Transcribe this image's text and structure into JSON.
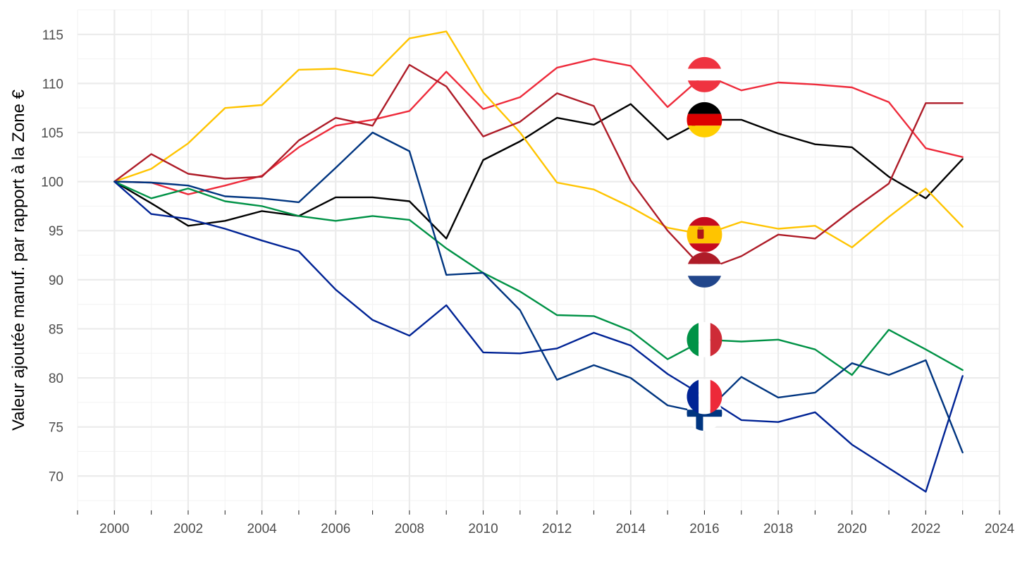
{
  "chart_data": {
    "type": "line",
    "title": "",
    "xlabel": "",
    "ylabel": "Valeur ajoutée manuf. par rapport à la Zone €",
    "xlim": [
      1999,
      2024
    ],
    "ylim": [
      66.5,
      117.5
    ],
    "x_ticks": [
      2000,
      2002,
      2004,
      2006,
      2008,
      2010,
      2012,
      2014,
      2016,
      2018,
      2020,
      2022,
      2024
    ],
    "y_ticks": [
      70,
      75,
      80,
      85,
      90,
      95,
      100,
      105,
      110,
      115
    ],
    "grid": true,
    "legend": "flags placed on the lines at 2016",
    "x": [
      2000,
      2001,
      2002,
      2003,
      2004,
      2005,
      2006,
      2007,
      2008,
      2009,
      2010,
      2011,
      2012,
      2013,
      2014,
      2015,
      2016,
      2017,
      2018,
      2019,
      2020,
      2021,
      2022,
      2023
    ],
    "series": [
      {
        "key": "AT",
        "color": "#EE2B3B",
        "flag": "austria-flag-icon",
        "values": [
          100,
          99.9,
          98.7,
          99.6,
          100.6,
          103.5,
          105.7,
          106.3,
          107.2,
          111.2,
          107.4,
          108.6,
          111.6,
          112.5,
          111.8,
          107.6,
          110.9,
          109.3,
          110.1,
          109.9,
          109.6,
          108.1,
          103.4,
          102.5
        ]
      },
      {
        "key": "DE",
        "color": "#000000",
        "flag": "germany-flag-icon",
        "values": [
          100,
          97.8,
          95.5,
          96.0,
          97.0,
          96.5,
          98.4,
          98.4,
          98.0,
          94.2,
          102.2,
          104.1,
          106.5,
          105.8,
          107.9,
          104.3,
          106.3,
          106.3,
          104.9,
          103.8,
          103.5,
          100.5,
          98.3,
          102.3
        ]
      },
      {
        "key": "ES",
        "color": "#FFC400",
        "flag": "spain-flag-icon",
        "values": [
          100,
          101.3,
          103.9,
          107.5,
          107.8,
          111.4,
          111.5,
          110.8,
          114.6,
          115.3,
          109.1,
          105.0,
          99.9,
          99.2,
          97.4,
          95.3,
          94.6,
          95.9,
          95.2,
          95.5,
          93.3,
          96.4,
          99.3,
          95.4
        ]
      },
      {
        "key": "NL",
        "color": "#AE1C28",
        "flag": "netherlands-flag-icon",
        "values": [
          100,
          102.8,
          100.8,
          100.3,
          100.5,
          104.2,
          106.5,
          105.7,
          111.9,
          109.7,
          104.6,
          106.1,
          109.0,
          107.7,
          100.1,
          95.0,
          91.0,
          92.4,
          94.6,
          94.2,
          97.1,
          99.8,
          108.0,
          108.0
        ]
      },
      {
        "key": "IT",
        "color": "#009246",
        "flag": "italy-flag-icon",
        "values": [
          100,
          98.3,
          99.3,
          98.0,
          97.5,
          96.5,
          96.0,
          96.5,
          96.1,
          93.2,
          90.7,
          88.8,
          86.4,
          86.3,
          84.8,
          81.9,
          83.9,
          83.7,
          83.9,
          82.9,
          80.3,
          84.9,
          82.9,
          80.8
        ]
      },
      {
        "key": "FR",
        "color": "#002395",
        "flag": "france-flag-icon",
        "values": [
          100,
          96.7,
          96.2,
          95.2,
          94.0,
          92.9,
          89.0,
          85.9,
          84.3,
          87.4,
          82.6,
          82.5,
          83.0,
          84.6,
          83.3,
          80.4,
          78.1,
          75.7,
          75.5,
          76.5,
          73.2,
          70.8,
          68.4,
          80.2
        ]
      },
      {
        "key": "FI",
        "color": "#003580",
        "flag": "finland-flag-icon",
        "values": [
          100,
          99.9,
          99.6,
          98.5,
          98.3,
          97.9,
          101.4,
          105.0,
          103.1,
          90.5,
          90.7,
          86.9,
          79.8,
          81.3,
          80.0,
          77.2,
          76.4,
          80.1,
          78.0,
          78.5,
          81.5,
          80.3,
          81.8,
          72.4
        ]
      }
    ]
  }
}
